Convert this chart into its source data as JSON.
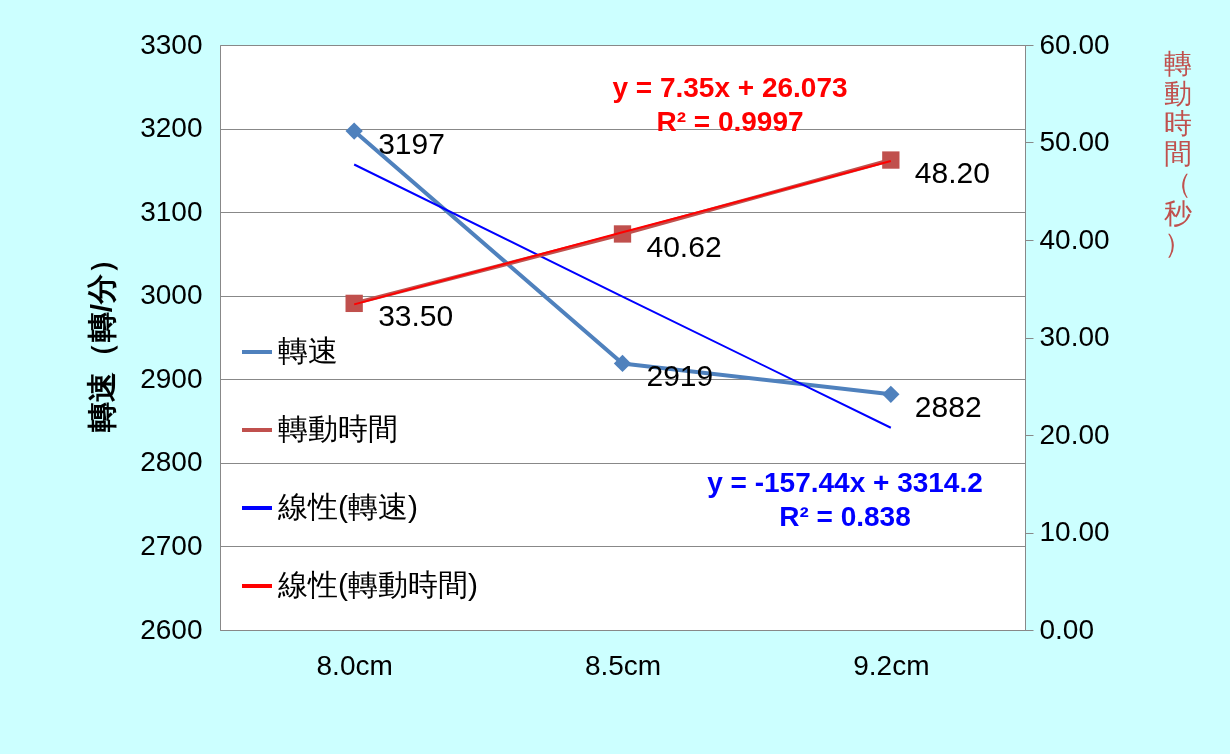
{
  "chart_data": {
    "type": "line",
    "categories": [
      "8.0cm",
      "8.5cm",
      "9.2cm"
    ],
    "ylabel": "轉速（轉/分）",
    "y2label": "轉動時間（秒）",
    "ylim": [
      2600,
      3300
    ],
    "yticks": [
      2600,
      2700,
      2800,
      2900,
      3000,
      3100,
      3200,
      3300
    ],
    "y2lim": [
      0,
      60
    ],
    "y2ticks": [
      {
        "value": 0,
        "label": "0.00"
      },
      {
        "value": 10,
        "label": "10.00"
      },
      {
        "value": 20,
        "label": "20.00"
      },
      {
        "value": 30,
        "label": "30.00"
      },
      {
        "value": 40,
        "label": "40.00"
      },
      {
        "value": 50,
        "label": "50.00"
      },
      {
        "value": 60,
        "label": "60.00"
      }
    ],
    "grid": "y",
    "legend": "left",
    "series": [
      {
        "name": "轉速",
        "color": "#4f81bd",
        "marker": "diamond",
        "values": [
          3197,
          2919,
          2882
        ],
        "value_labels": [
          "3197",
          "2919",
          "2882"
        ]
      },
      {
        "name": "轉動時間",
        "color": "#c0504d",
        "marker": "square",
        "axis": "y2",
        "values": [
          33.5,
          40.62,
          48.2
        ],
        "value_labels": [
          "33.50",
          "40.62",
          "48.20"
        ]
      },
      {
        "name": "線性(轉速)",
        "color": "#0000ff",
        "marker": "none",
        "values": [
          3157,
          2999,
          2842
        ]
      },
      {
        "name": "線性(轉動時間)",
        "color": "#ff0000",
        "marker": "none",
        "axis": "y2",
        "values": [
          33.4,
          40.8,
          48.1
        ]
      }
    ],
    "annotations": [
      "y = 7.35x + 26.073\nR² = 0.9997",
      "y = -157.44x + 3314.2\nR² = 0.838"
    ]
  }
}
